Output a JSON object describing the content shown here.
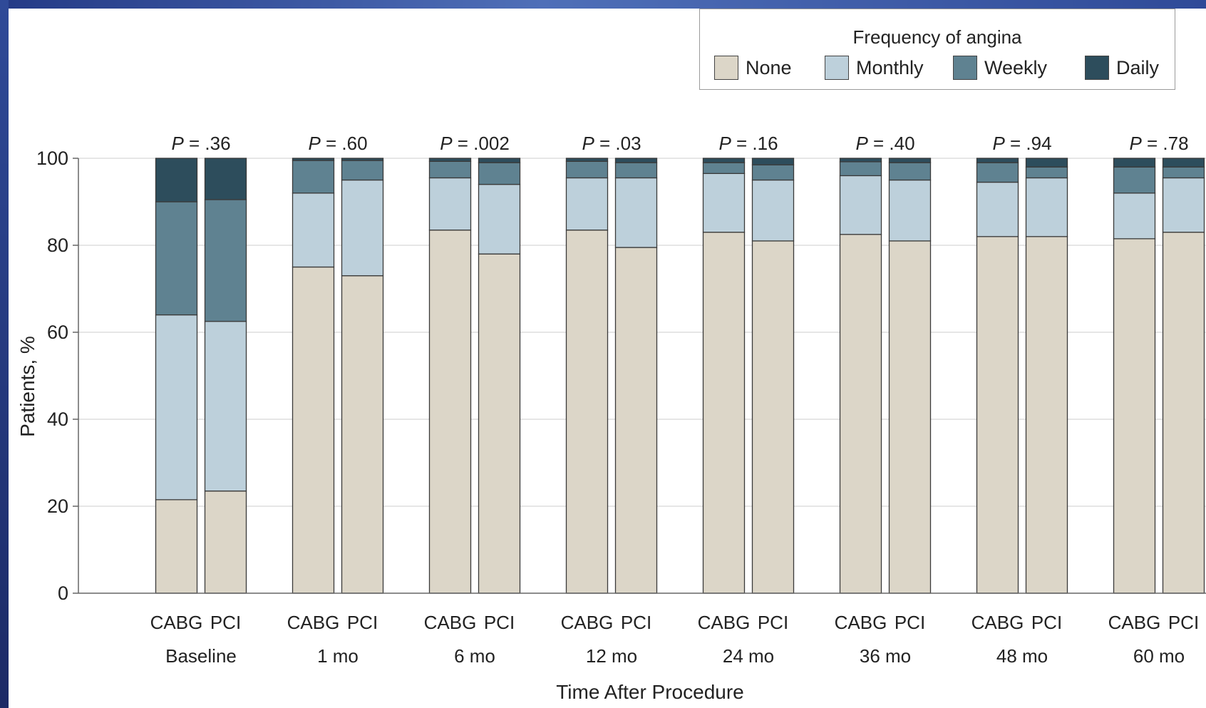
{
  "chart_data": {
    "type": "bar",
    "stacked": true,
    "ylabel": "Patients, %",
    "xlabel": "Time After Procedure",
    "ylim": [
      0,
      100
    ],
    "yticks": [
      0,
      20,
      40,
      60,
      80,
      100
    ],
    "legend": {
      "title": "Frequency of angina",
      "placement": "top-right",
      "items": [
        "None",
        "Monthly",
        "Weekly",
        "Daily"
      ]
    },
    "colors": {
      "None": "#dcd6c8",
      "Monthly": "#bdd0db",
      "Weekly": "#5f8291",
      "Daily": "#2d4d5c"
    },
    "groups": [
      {
        "label": "Baseline",
        "p": ".36",
        "bars": [
          {
            "label": "CABG",
            "None": 21.5,
            "Monthly": 42.5,
            "Weekly": 26,
            "Daily": 10
          },
          {
            "label": "PCI",
            "None": 23.5,
            "Monthly": 39,
            "Weekly": 28,
            "Daily": 9.5
          }
        ]
      },
      {
        "label": "1 mo",
        "p": ".60",
        "bars": [
          {
            "label": "CABG",
            "None": 75,
            "Monthly": 17,
            "Weekly": 7.5,
            "Daily": 0.5
          },
          {
            "label": "PCI",
            "None": 73,
            "Monthly": 22,
            "Weekly": 4.5,
            "Daily": 0.5
          }
        ]
      },
      {
        "label": "6 mo",
        "p": ".002",
        "bars": [
          {
            "label": "CABG",
            "None": 83.5,
            "Monthly": 12,
            "Weekly": 3.8,
            "Daily": 0.7
          },
          {
            "label": "PCI",
            "None": 78,
            "Monthly": 16,
            "Weekly": 5,
            "Daily": 1
          }
        ]
      },
      {
        "label": "12 mo",
        "p": ".03",
        "bars": [
          {
            "label": "CABG",
            "None": 83.5,
            "Monthly": 12,
            "Weekly": 3.8,
            "Daily": 0.7
          },
          {
            "label": "PCI",
            "None": 79.5,
            "Monthly": 16,
            "Weekly": 3.5,
            "Daily": 1
          }
        ]
      },
      {
        "label": "24 mo",
        "p": ".16",
        "bars": [
          {
            "label": "CABG",
            "None": 83,
            "Monthly": 13.5,
            "Weekly": 2.5,
            "Daily": 1
          },
          {
            "label": "PCI",
            "None": 81,
            "Monthly": 14,
            "Weekly": 3.5,
            "Daily": 1.5
          }
        ]
      },
      {
        "label": "36 mo",
        "p": ".40",
        "bars": [
          {
            "label": "CABG",
            "None": 82.5,
            "Monthly": 13.5,
            "Weekly": 3.2,
            "Daily": 0.8
          },
          {
            "label": "PCI",
            "None": 81,
            "Monthly": 14,
            "Weekly": 4,
            "Daily": 1
          }
        ]
      },
      {
        "label": "48 mo",
        "p": ".94",
        "bars": [
          {
            "label": "CABG",
            "None": 82,
            "Monthly": 12.5,
            "Weekly": 4.5,
            "Daily": 1
          },
          {
            "label": "PCI",
            "None": 82,
            "Monthly": 13.5,
            "Weekly": 2.5,
            "Daily": 2
          }
        ]
      },
      {
        "label": "60 mo",
        "p": ".78",
        "bars": [
          {
            "label": "CABG",
            "None": 81.5,
            "Monthly": 10.5,
            "Weekly": 6,
            "Daily": 2
          },
          {
            "label": "PCI",
            "None": 83,
            "Monthly": 12.5,
            "Weekly": 2.5,
            "Daily": 2
          }
        ]
      }
    ]
  }
}
